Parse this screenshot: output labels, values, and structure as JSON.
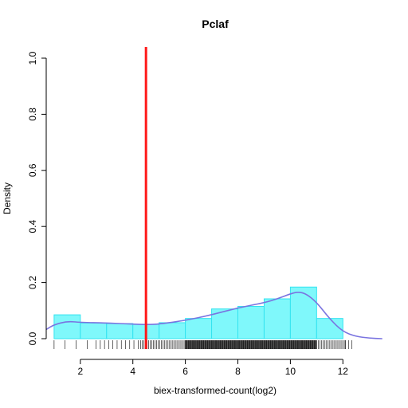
{
  "chart_data": {
    "type": "histogram",
    "title": "Pclaf",
    "xlabel": "biex-transformed-count(log2)",
    "ylabel": "Density",
    "xlim": [
      0.7,
      13.6
    ],
    "ylim": [
      0,
      1.0
    ],
    "x_ticks": [
      2,
      4,
      6,
      8,
      10,
      12
    ],
    "y_ticks": [
      0.0,
      0.2,
      0.4,
      0.6,
      0.8,
      1.0
    ],
    "y_tick_labels": [
      "0.0",
      "0.2",
      "0.4",
      "0.6",
      "0.8",
      "1.0"
    ],
    "x_tick_labels": [
      "2",
      "4",
      "6",
      "8",
      "10",
      "12"
    ],
    "bins": [
      {
        "x0": 1,
        "x1": 2,
        "density": 0.085
      },
      {
        "x0": 2,
        "x1": 3,
        "density": 0.056
      },
      {
        "x0": 3,
        "x1": 4,
        "density": 0.054
      },
      {
        "x0": 4,
        "x1": 5,
        "density": 0.051
      },
      {
        "x0": 5,
        "x1": 6,
        "density": 0.057
      },
      {
        "x0": 6,
        "x1": 7,
        "density": 0.072
      },
      {
        "x0": 7,
        "x1": 8,
        "density": 0.106
      },
      {
        "x0": 8,
        "x1": 9,
        "density": 0.115
      },
      {
        "x0": 9,
        "x1": 10,
        "density": 0.142
      },
      {
        "x0": 10,
        "x1": 11,
        "density": 0.184
      },
      {
        "x0": 11,
        "x1": 12,
        "density": 0.072
      }
    ],
    "density_curve": [
      {
        "x": 0.7,
        "y": 0.033
      },
      {
        "x": 1.0,
        "y": 0.05
      },
      {
        "x": 1.5,
        "y": 0.062
      },
      {
        "x": 2.0,
        "y": 0.058
      },
      {
        "x": 3.0,
        "y": 0.056
      },
      {
        "x": 4.0,
        "y": 0.052
      },
      {
        "x": 4.5,
        "y": 0.05
      },
      {
        "x": 5.0,
        "y": 0.052
      },
      {
        "x": 6.0,
        "y": 0.065
      },
      {
        "x": 7.0,
        "y": 0.085
      },
      {
        "x": 8.0,
        "y": 0.11
      },
      {
        "x": 9.0,
        "y": 0.128
      },
      {
        "x": 9.5,
        "y": 0.142
      },
      {
        "x": 10.0,
        "y": 0.16
      },
      {
        "x": 10.3,
        "y": 0.167
      },
      {
        "x": 10.6,
        "y": 0.16
      },
      {
        "x": 11.0,
        "y": 0.13
      },
      {
        "x": 11.5,
        "y": 0.07
      },
      {
        "x": 12.0,
        "y": 0.025
      },
      {
        "x": 12.5,
        "y": 0.008
      },
      {
        "x": 13.0,
        "y": 0.002
      },
      {
        "x": 13.5,
        "y": 0.0
      }
    ],
    "vline": {
      "x": 4.5,
      "color": "#ff1a1a"
    },
    "colors": {
      "bar_fill": "#7ff8fb",
      "bar_stroke": "#33e3f0",
      "density_line": "#7a74e0",
      "rug": "#000000"
    },
    "rug_segments": [
      {
        "from": 1.0,
        "to": 2.6,
        "spacing": 0.42
      },
      {
        "from": 2.6,
        "to": 4.3,
        "spacing": 0.16
      },
      {
        "from": 4.3,
        "to": 6.0,
        "spacing": 0.06
      },
      {
        "from": 6.0,
        "to": 11.0,
        "spacing": 0.022
      },
      {
        "from": 11.0,
        "to": 12.1,
        "spacing": 0.06
      },
      {
        "from": 12.1,
        "to": 12.4,
        "spacing": 0.12
      }
    ],
    "grid": false,
    "legend": "none"
  }
}
